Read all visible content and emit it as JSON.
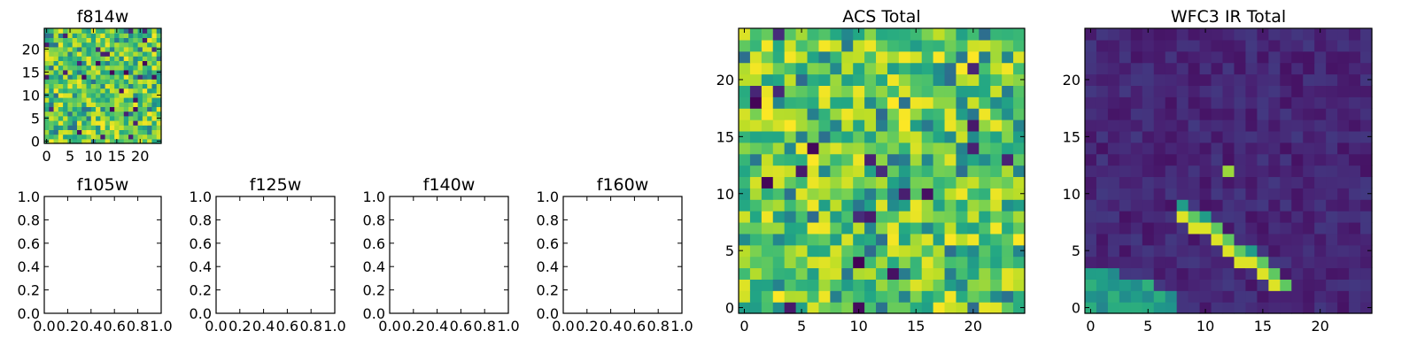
{
  "figure": {
    "panels": [
      {
        "id": "f814w",
        "title": "f814w",
        "kind": "image",
        "grid_size": 25,
        "x_ticks": [
          "0",
          "5",
          "10",
          "15",
          "20"
        ],
        "y_ticks": [
          "0",
          "5",
          "10",
          "15",
          "20"
        ],
        "colormap": "viridis",
        "pattern": "noise"
      },
      {
        "id": "f105w",
        "title": "f105w",
        "kind": "empty",
        "x_ticks": [
          "0.0",
          "0.2",
          "0.4",
          "0.6",
          "0.8",
          "1.0"
        ],
        "y_ticks": [
          "0.0",
          "0.2",
          "0.4",
          "0.6",
          "0.8",
          "1.0"
        ]
      },
      {
        "id": "f125w",
        "title": "f125w",
        "kind": "empty",
        "x_ticks": [
          "0.0",
          "0.2",
          "0.4",
          "0.6",
          "0.8",
          "1.0"
        ],
        "y_ticks": [
          "0.0",
          "0.2",
          "0.4",
          "0.6",
          "0.8",
          "1.0"
        ]
      },
      {
        "id": "f140w",
        "title": "f140w",
        "kind": "empty",
        "x_ticks": [
          "0.0",
          "0.2",
          "0.4",
          "0.6",
          "0.8",
          "1.0"
        ],
        "y_ticks": [
          "0.0",
          "0.2",
          "0.4",
          "0.6",
          "0.8",
          "1.0"
        ]
      },
      {
        "id": "f160w",
        "title": "f160w",
        "kind": "empty",
        "x_ticks": [
          "0.0",
          "0.2",
          "0.4",
          "0.6",
          "0.8",
          "1.0"
        ],
        "y_ticks": [
          "0.0",
          "0.2",
          "0.4",
          "0.6",
          "0.8",
          "1.0"
        ]
      },
      {
        "id": "acs-total",
        "title": "ACS Total",
        "kind": "image",
        "grid_size": 25,
        "x_ticks": [
          "0",
          "5",
          "10",
          "15",
          "20"
        ],
        "y_ticks": [
          "0",
          "5",
          "10",
          "15",
          "20"
        ],
        "colormap": "viridis",
        "pattern": "noise"
      },
      {
        "id": "wfc3-ir-total",
        "title": "WFC3 IR Total",
        "kind": "image",
        "grid_size": 25,
        "x_ticks": [
          "0",
          "5",
          "10",
          "15",
          "20"
        ],
        "y_ticks": [
          "0",
          "5",
          "10",
          "15",
          "20"
        ],
        "colormap": "viridis",
        "pattern": "streak"
      }
    ]
  },
  "chart_data": [
    {
      "type": "heatmap",
      "title": "f814w",
      "xlim": [
        0,
        25
      ],
      "ylim": [
        0,
        25
      ],
      "grid": [
        25,
        25
      ],
      "x_ticks": [
        0,
        5,
        10,
        15,
        20
      ],
      "y_ticks": [
        0,
        5,
        10,
        15,
        20
      ],
      "colormap": "viridis",
      "value_range": [
        0.3,
        1.0
      ]
    },
    {
      "type": "empty",
      "title": "f105w",
      "xlim": [
        0.0,
        1.0
      ],
      "ylim": [
        0.0,
        1.0
      ]
    },
    {
      "type": "empty",
      "title": "f125w",
      "xlim": [
        0.0,
        1.0
      ],
      "ylim": [
        0.0,
        1.0
      ]
    },
    {
      "type": "empty",
      "title": "f140w",
      "xlim": [
        0.0,
        1.0
      ],
      "ylim": [
        0.0,
        1.0
      ]
    },
    {
      "type": "empty",
      "title": "f160w",
      "xlim": [
        0.0,
        1.0
      ],
      "ylim": [
        0.0,
        1.0
      ]
    },
    {
      "type": "heatmap",
      "title": "ACS Total",
      "xlim": [
        0,
        25
      ],
      "ylim": [
        0,
        25
      ],
      "grid": [
        25,
        25
      ],
      "x_ticks": [
        0,
        5,
        10,
        15,
        20
      ],
      "y_ticks": [
        0,
        5,
        10,
        15,
        20
      ],
      "colormap": "viridis",
      "value_range": [
        0.3,
        1.0
      ]
    },
    {
      "type": "heatmap",
      "title": "WFC3 IR Total",
      "xlim": [
        0,
        25
      ],
      "ylim": [
        0,
        25
      ],
      "grid": [
        25,
        25
      ],
      "x_ticks": [
        0,
        5,
        10,
        15,
        20
      ],
      "y_ticks": [
        0,
        5,
        10,
        15,
        20
      ],
      "colormap": "viridis",
      "background_level": 0.05,
      "bright_streak": [
        [
          8,
          8
        ],
        [
          9,
          7
        ],
        [
          10,
          7
        ],
        [
          11,
          6
        ],
        [
          12,
          5
        ],
        [
          13,
          4
        ],
        [
          14,
          4
        ],
        [
          15,
          3
        ],
        [
          16,
          2
        ]
      ],
      "bright_pixels": [
        [
          12,
          12
        ]
      ],
      "left_bottom_blob": [
        [
          0,
          3
        ],
        [
          1,
          3
        ],
        [
          2,
          3
        ],
        [
          3,
          2
        ],
        [
          4,
          2
        ],
        [
          5,
          2
        ],
        [
          6,
          1
        ],
        [
          7,
          1
        ]
      ]
    }
  ]
}
